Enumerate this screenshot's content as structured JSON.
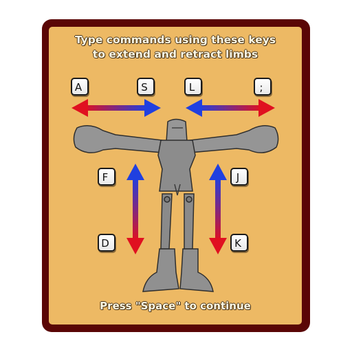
{
  "instructions": {
    "line1": "Type commands using these keys",
    "line2": "to extend and retract limbs"
  },
  "footer": "Press \"Space\" to continue",
  "keys": {
    "left_arm_extend": "A",
    "left_arm_retract": "S",
    "right_arm_retract": "L",
    "right_arm_extend": ";",
    "left_leg_retract": "F",
    "left_leg_extend": "D",
    "right_leg_retract": "J",
    "right_leg_extend": "K"
  },
  "colors": {
    "frame": "#5a0606",
    "panel": "#edb964",
    "arrow_red": "#e01020",
    "arrow_blue": "#2040e0",
    "robot": "#8e8e8e"
  }
}
